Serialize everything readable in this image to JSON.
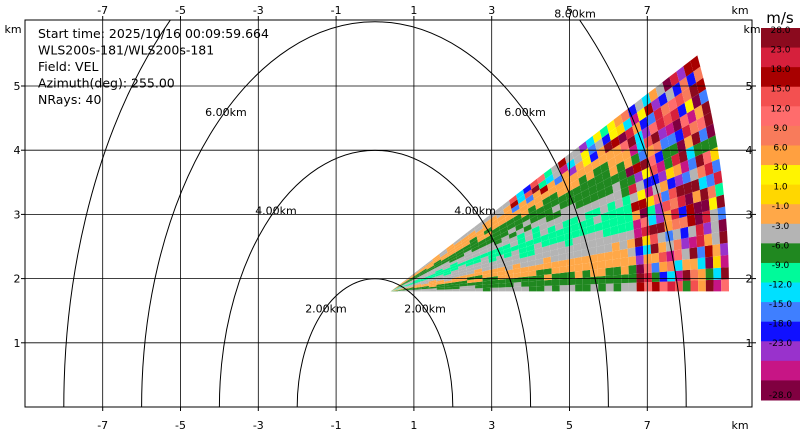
{
  "chart_data": {
    "type": "heatmap",
    "info_lines": [
      "Start time: 2025/10/16 00:09:59.664",
      "WLS200s-181/WLS200s-181",
      "Field: VEL",
      "Azimuth(deg): 255.00",
      "NRays: 40"
    ],
    "x_unit": "km",
    "y_unit": "km",
    "xlim": [
      -9,
      9
    ],
    "ylim": [
      0,
      6
    ],
    "xticks": [
      -7,
      -5,
      -3,
      -1,
      1,
      3,
      5,
      7
    ],
    "yticks": [
      1,
      2,
      3,
      4,
      5
    ],
    "grid": true,
    "range_rings": [
      {
        "radius": 2,
        "label_left": "2.00km",
        "label_right": "2.00km"
      },
      {
        "radius": 4,
        "label_left": "4.00km",
        "label_right": "4.00km"
      },
      {
        "radius": 6,
        "label_left": "6.00km",
        "label_right": "6.00km"
      },
      {
        "radius": 8,
        "label_left": "",
        "label_right": "8.00km"
      }
    ],
    "sector": {
      "origin": [
        0.4,
        1.8
      ],
      "az_min_deg": 0,
      "az_max_deg": 25,
      "max_range_km": 8.7
    },
    "colorbar": {
      "unit": "m/s",
      "tick_labels": [
        "28.0",
        "23.0",
        "18.0",
        "15.0",
        "12.0",
        "9.0",
        "6.0",
        "3.0",
        "1.0",
        "-1.0",
        "-3.0",
        "-6.0",
        "-9.0",
        "-12.0",
        "-15.0",
        "-18.0",
        "-23.0",
        "-28.0"
      ],
      "colors": [
        "#8b0a1e",
        "#d6203c",
        "#a80000",
        "#f35050",
        "#ff6c6c",
        "#f87b5b",
        "#ffa040",
        "#fff400",
        "#ffd700",
        "#ffa848",
        "#b4b4b4",
        "#208820",
        "#00fa9a",
        "#00e0ff",
        "#3f7fff",
        "#1010ff",
        "#9932cc",
        "#c71585",
        "#800040"
      ]
    }
  }
}
